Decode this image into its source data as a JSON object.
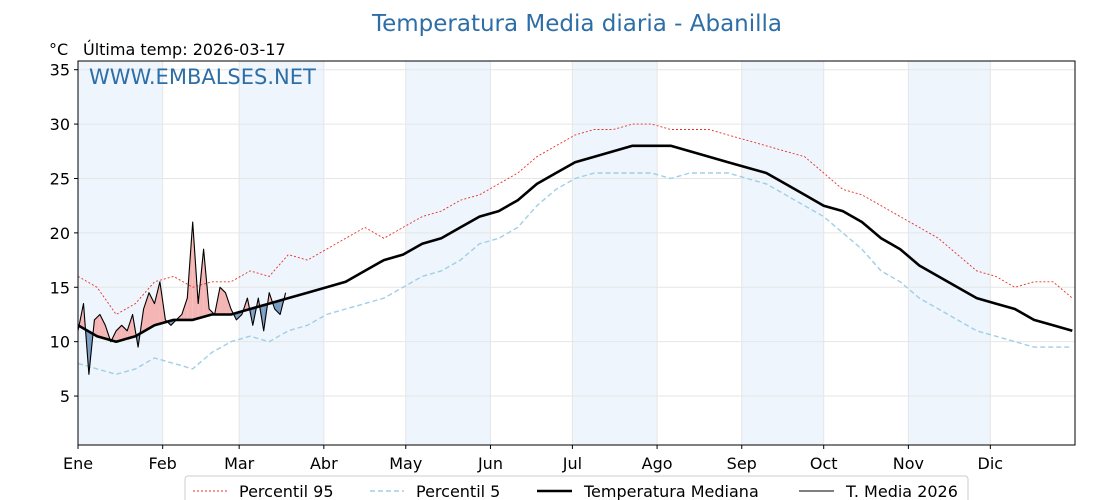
{
  "title": "Temperatura Media diaria - Abanilla",
  "unit_label": "°C",
  "last_temp_label": "Última temp: 2026-03-17",
  "watermark": "WWW.EMBALSES.NET",
  "colors": {
    "p95": "#e8302a",
    "p5": "#9fcfe6",
    "median": "#000000",
    "current": "#000000",
    "above_fill": "#f4b5b5",
    "below_fill": "#7a9cc0",
    "band": "#eef5fc",
    "title": "#2e6ea6"
  },
  "chart_data": {
    "type": "line",
    "title": "Temperatura Media diaria - Abanilla",
    "ylabel": "°C",
    "xlabel": "",
    "xlim": [
      1,
      366
    ],
    "ylim": [
      0.5,
      35.8
    ],
    "yticks": [
      5,
      10,
      15,
      20,
      25,
      30,
      35
    ],
    "grid": true,
    "legend_position": "bottom-center",
    "months": [
      {
        "label": "Ene",
        "day": 1
      },
      {
        "label": "Feb",
        "day": 32
      },
      {
        "label": "Mar",
        "day": 60
      },
      {
        "label": "Abr",
        "day": 91
      },
      {
        "label": "May",
        "day": 121
      },
      {
        "label": "Jun",
        "day": 152
      },
      {
        "label": "Jul",
        "day": 182
      },
      {
        "label": "Ago",
        "day": 213
      },
      {
        "label": "Sep",
        "day": 244
      },
      {
        "label": "Oct",
        "day": 274
      },
      {
        "label": "Nov",
        "day": 305
      },
      {
        "label": "Dic",
        "day": 335
      }
    ],
    "series": [
      {
        "name": "Percentil 95",
        "key": "p95",
        "x": [
          1,
          8,
          15,
          22,
          29,
          36,
          43,
          50,
          57,
          64,
          71,
          78,
          85,
          92,
          99,
          106,
          113,
          120,
          127,
          134,
          141,
          148,
          155,
          162,
          169,
          176,
          183,
          190,
          197,
          204,
          211,
          218,
          225,
          232,
          239,
          246,
          253,
          260,
          267,
          274,
          281,
          288,
          295,
          302,
          309,
          316,
          323,
          330,
          337,
          344,
          351,
          358,
          365
        ],
        "y": [
          16.0,
          15.0,
          12.5,
          13.5,
          15.5,
          16.0,
          15.0,
          15.5,
          15.5,
          16.5,
          16.0,
          18.0,
          17.5,
          18.5,
          19.5,
          20.5,
          19.5,
          20.5,
          21.5,
          22.0,
          23.0,
          23.5,
          24.5,
          25.5,
          27.0,
          28.0,
          29.0,
          29.5,
          29.5,
          30.0,
          30.0,
          29.5,
          29.5,
          29.5,
          29.0,
          28.5,
          28.0,
          27.5,
          27.0,
          25.5,
          24.0,
          23.5,
          22.5,
          21.5,
          20.5,
          19.5,
          18.0,
          16.5,
          16.0,
          15.0,
          15.5,
          15.5,
          14.0
        ]
      },
      {
        "name": "Percentil 5",
        "key": "p5",
        "x": [
          1,
          8,
          15,
          22,
          29,
          36,
          43,
          50,
          57,
          64,
          71,
          78,
          85,
          92,
          99,
          106,
          113,
          120,
          127,
          134,
          141,
          148,
          155,
          162,
          169,
          176,
          183,
          190,
          197,
          204,
          211,
          218,
          225,
          232,
          239,
          246,
          253,
          260,
          267,
          274,
          281,
          288,
          295,
          302,
          309,
          316,
          323,
          330,
          337,
          344,
          351,
          358,
          365
        ],
        "y": [
          8.0,
          7.5,
          7.0,
          7.5,
          8.5,
          8.0,
          7.5,
          9.0,
          10.0,
          10.5,
          10.0,
          11.0,
          11.5,
          12.5,
          13.0,
          13.5,
          14.0,
          15.0,
          16.0,
          16.5,
          17.5,
          19.0,
          19.5,
          20.5,
          22.5,
          24.0,
          25.0,
          25.5,
          25.5,
          25.5,
          25.5,
          25.0,
          25.5,
          25.5,
          25.5,
          25.0,
          24.5,
          23.5,
          22.5,
          21.5,
          20.0,
          18.5,
          16.5,
          15.5,
          14.0,
          13.0,
          12.0,
          11.0,
          10.5,
          10.0,
          9.5,
          9.5,
          9.5
        ]
      },
      {
        "name": "Temperatura Mediana",
        "key": "median",
        "x": [
          1,
          8,
          15,
          22,
          29,
          36,
          43,
          50,
          57,
          64,
          71,
          78,
          85,
          92,
          99,
          106,
          113,
          120,
          127,
          134,
          141,
          148,
          155,
          162,
          169,
          176,
          183,
          190,
          197,
          204,
          211,
          218,
          225,
          232,
          239,
          246,
          253,
          260,
          267,
          274,
          281,
          288,
          295,
          302,
          309,
          316,
          323,
          330,
          337,
          344,
          351,
          358,
          365
        ],
        "y": [
          11.5,
          10.5,
          10.0,
          10.5,
          11.5,
          12.0,
          12.0,
          12.5,
          12.5,
          13.0,
          13.5,
          14.0,
          14.5,
          15.0,
          15.5,
          16.5,
          17.5,
          18.0,
          19.0,
          19.5,
          20.5,
          21.5,
          22.0,
          23.0,
          24.5,
          25.5,
          26.5,
          27.0,
          27.5,
          28.0,
          28.0,
          28.0,
          27.5,
          27.0,
          26.5,
          26.0,
          25.5,
          24.5,
          23.5,
          22.5,
          22.0,
          21.0,
          19.5,
          18.5,
          17.0,
          16.0,
          15.0,
          14.0,
          13.5,
          13.0,
          12.0,
          11.5,
          11.0
        ]
      },
      {
        "name": "T. Media 2026",
        "key": "current",
        "x": [
          1,
          3,
          5,
          7,
          9,
          11,
          13,
          15,
          17,
          19,
          21,
          23,
          25,
          27,
          29,
          31,
          33,
          35,
          37,
          39,
          41,
          43,
          45,
          47,
          49,
          51,
          53,
          55,
          57,
          59,
          61,
          63,
          65,
          67,
          69,
          71,
          73,
          75,
          77
        ],
        "y": [
          11.0,
          13.5,
          7.0,
          12.0,
          12.5,
          11.5,
          10.0,
          11.0,
          11.5,
          11.0,
          12.5,
          9.5,
          13.0,
          14.5,
          13.5,
          15.5,
          12.0,
          11.5,
          12.0,
          12.5,
          14.0,
          21.0,
          13.5,
          18.5,
          13.0,
          12.5,
          15.0,
          14.5,
          13.0,
          12.0,
          12.5,
          14.0,
          11.5,
          14.0,
          11.0,
          14.5,
          13.0,
          12.5,
          14.5
        ]
      }
    ]
  }
}
